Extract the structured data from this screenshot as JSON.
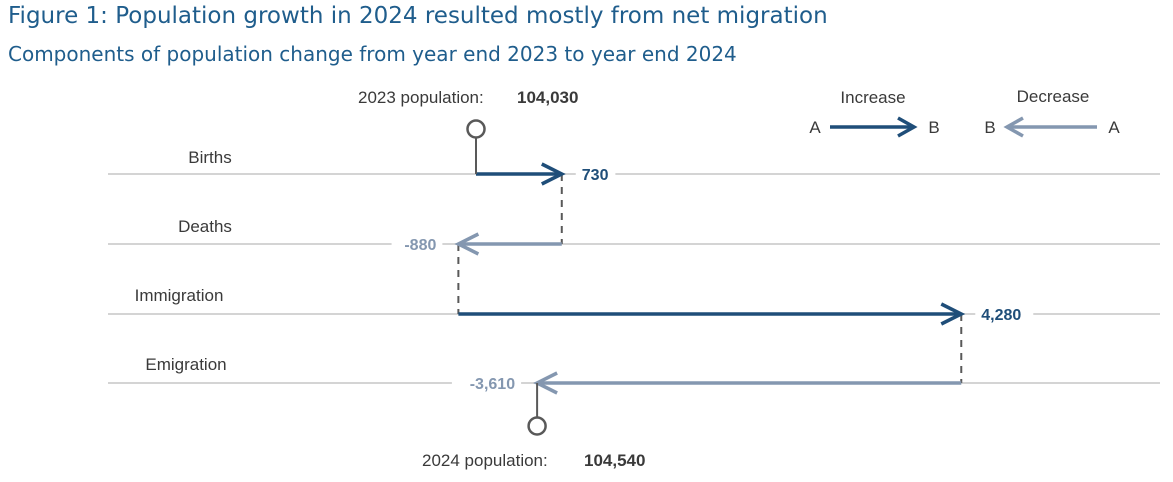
{
  "title": "Figure 1: Population growth in 2024 resulted mostly from net migration",
  "subtitle": "Components of population change from year end 2023 to year end 2024",
  "chart_data": {
    "type": "waterfall",
    "start": {
      "label": "2023 population:",
      "value": 104030,
      "value_text": "104,030"
    },
    "end": {
      "label": "2024 population:",
      "value": 104540,
      "value_text": "104,540"
    },
    "categories": [
      "Births",
      "Deaths",
      "Immigration",
      "Emigration"
    ],
    "values": [
      730,
      -880,
      4280,
      -3610
    ],
    "value_labels": [
      "730",
      "-880",
      "4,280",
      "-3,610"
    ],
    "legend": {
      "increase": {
        "label": "Increase",
        "from": "A",
        "to": "B"
      },
      "decrease": {
        "label": "Decrease",
        "from": "A",
        "to": "B"
      },
      "placement": "top-right"
    },
    "colors": {
      "increase": "#1f4e79",
      "decrease": "#8497b0",
      "gridline": "#d4d4d4",
      "marker": "#595959"
    }
  }
}
